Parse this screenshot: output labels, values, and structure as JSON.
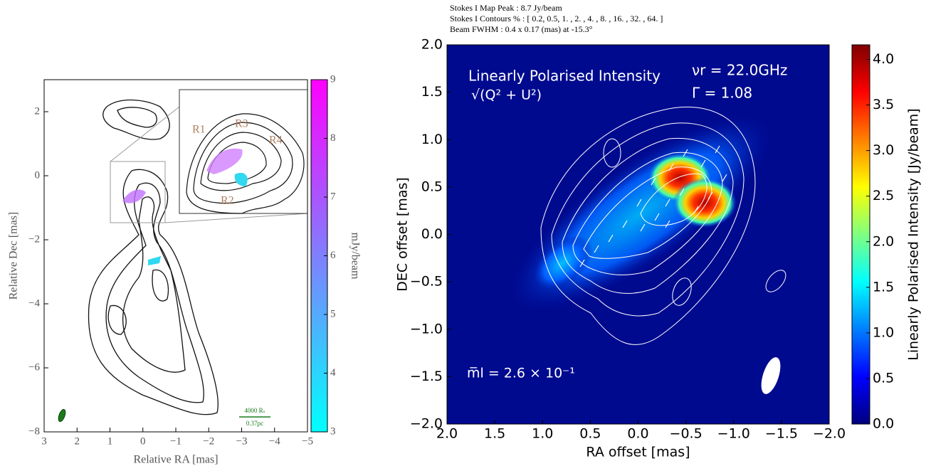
{
  "chart_data": [
    {
      "type": "contour",
      "xlabel": "Relative RA [mas]",
      "ylabel": "Relative Dec [mas]",
      "xlim": [
        3,
        -5
      ],
      "ylim": [
        -8,
        3
      ],
      "xticks": [
        3,
        2,
        1,
        0,
        {
          "value": -1,
          "label": "−1"
        },
        {
          "value": -2,
          "label": "−2"
        },
        {
          "value": -3,
          "label": "−3"
        },
        {
          "value": -4,
          "label": "−4"
        },
        {
          "value": -5,
          "label": "−5"
        }
      ],
      "yticks": [
        {
          "value": -8,
          "label": "−8"
        },
        {
          "value": -6,
          "label": "−6"
        },
        {
          "value": -4,
          "label": "−4"
        },
        {
          "value": -2,
          "label": "−2"
        },
        0,
        2
      ],
      "colorbar": {
        "label": "mJy/beam",
        "lim": [
          3,
          9
        ],
        "ticks": [
          3,
          4,
          5,
          6,
          7,
          8,
          9
        ],
        "colors": [
          "#00ffff",
          "#ff00ff"
        ]
      },
      "annotations": [
        "R1",
        "R3",
        "R4",
        "R2",
        "4000 Rₛ",
        "0.37pc"
      ]
    },
    {
      "type": "contour",
      "header": [
        "Stokes I Map Peak :  8.7 Jy/beam",
        "Stokes I Contours % :  [ 0.2, 0.5, 1. , 2. , 4. , 8. , 16. , 32. , 64. ]",
        "Beam FWHM :  0.4 x 0.17 (mas) at -15.3°"
      ],
      "xlabel": "RA offset [mas]",
      "ylabel": "DEC offset [mas]",
      "xlim": [
        2,
        -2
      ],
      "ylim": [
        -2,
        2
      ],
      "xticks": [
        {
          "value": 2,
          "label": "2.0"
        },
        {
          "value": 1.5,
          "label": "1.5"
        },
        {
          "value": 1,
          "label": "1.0"
        },
        {
          "value": 0.5,
          "label": "0.5"
        },
        {
          "value": 0,
          "label": "0.0"
        },
        {
          "value": -0.5,
          "label": "−0.5"
        },
        {
          "value": -1,
          "label": "−1.0"
        },
        {
          "value": -1.5,
          "label": "−1.5"
        },
        {
          "value": -2,
          "label": "−2.0"
        }
      ],
      "yticks": [
        {
          "value": -2,
          "label": "−2.0"
        },
        {
          "value": -1.5,
          "label": "−1.5"
        },
        {
          "value": -1,
          "label": "−1.0"
        },
        {
          "value": -0.5,
          "label": "−0.5"
        },
        {
          "value": 0,
          "label": "0.0"
        },
        {
          "value": 0.5,
          "label": "0.5"
        },
        {
          "value": 1,
          "label": "1.0"
        },
        {
          "value": 1.5,
          "label": "1.5"
        },
        {
          "value": 2,
          "label": "2.0"
        }
      ],
      "colorbar": {
        "label": "Linearly Polarised Intensity [Jy/beam]",
        "lim": [
          0,
          4.16
        ],
        "ticks": [
          {
            "value": 0,
            "label": "0.0"
          },
          {
            "value": 0.5,
            "label": "0.5"
          },
          {
            "value": 1,
            "label": "1.0"
          },
          {
            "value": 1.5,
            "label": "1.5"
          },
          {
            "value": 2,
            "label": "2.0"
          },
          {
            "value": 2.5,
            "label": "2.5"
          },
          {
            "value": 3,
            "label": "3.0"
          },
          {
            "value": 3.5,
            "label": "3.5"
          },
          {
            "value": 4,
            "label": "4.0"
          }
        ],
        "colors": [
          "#00007f",
          "#0000ff",
          "#0080ff",
          "#00ffff",
          "#80ff80",
          "#ffff00",
          "#ff8000",
          "#ff0000",
          "#7f0000"
        ]
      },
      "annotations": [
        "Linearly Polarised Intensity",
        "√(Q² + U²)",
        "νr = 22.0GHz",
        "Γ = 1.08",
        "m̅l =  2.6 × 10⁻¹"
      ]
    }
  ]
}
